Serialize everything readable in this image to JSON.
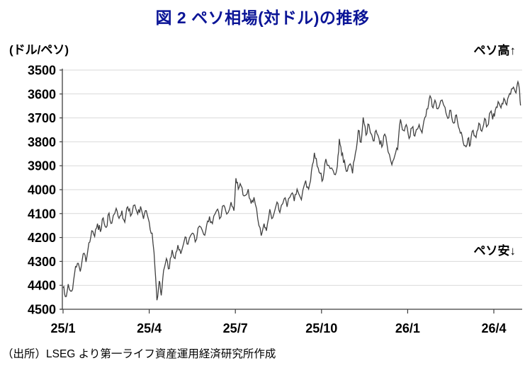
{
  "title": "図 2 ペソ相場(対ドル)の推移",
  "axis_unit": "(ドル/ペソ)",
  "annotations": {
    "high": "ペソ高↑",
    "low": "ペソ安↓"
  },
  "source": "（出所）LSEG より第一ライフ資産運用経済研究所作成",
  "colors": {
    "title": "#0b1597",
    "series_line": "#404040",
    "gridline": "#d9d9d9",
    "axis": "#3f3f3f",
    "tick_text": "#000000"
  },
  "chart_data": {
    "type": "line",
    "title": "図 2 ペソ相場(対ドル)の推移",
    "ylabel": "(ドル/ペソ)",
    "grid": "horizontal",
    "legend": "none",
    "y_axis": {
      "min": 3500,
      "max": 4500,
      "tick_step": 100,
      "inverted_display": true,
      "ticks": [
        3500,
        3600,
        3700,
        3800,
        3900,
        4000,
        4100,
        4200,
        4300,
        4400,
        4500
      ]
    },
    "x_axis": {
      "tick_labels": [
        "25/1",
        "25/4",
        "25/7",
        "25/10",
        "26/1",
        "26/4"
      ],
      "tick_month_offsets": [
        0,
        3,
        6,
        9,
        12,
        15
      ],
      "total_months": 16,
      "meaning": "year/month (2025/1 - 2026/4)"
    },
    "series": [
      {
        "name": "ペソ相場(対ドル)",
        "color": "#404040",
        "points_unit": "[months since 2025-01, pesos per dollar]",
        "points": [
          [
            0,
            4410
          ],
          [
            0.08,
            4447
          ],
          [
            0.18,
            4395
          ],
          [
            0.3,
            4424
          ],
          [
            0.4,
            4352
          ],
          [
            0.5,
            4308
          ],
          [
            0.6,
            4342
          ],
          [
            0.7,
            4268
          ],
          [
            0.8,
            4302
          ],
          [
            0.9,
            4222
          ],
          [
            1.0,
            4172
          ],
          [
            1.1,
            4196
          ],
          [
            1.2,
            4142
          ],
          [
            1.3,
            4176
          ],
          [
            1.4,
            4118
          ],
          [
            1.5,
            4158
          ],
          [
            1.6,
            4098
          ],
          [
            1.7,
            4140
          ],
          [
            1.85,
            4078
          ],
          [
            1.95,
            4120
          ],
          [
            2.05,
            4088
          ],
          [
            2.15,
            4136
          ],
          [
            2.25,
            4072
          ],
          [
            2.35,
            4110
          ],
          [
            2.5,
            4064
          ],
          [
            2.6,
            4102
          ],
          [
            2.7,
            4070
          ],
          [
            2.8,
            4122
          ],
          [
            2.9,
            4088
          ],
          [
            3.0,
            4136
          ],
          [
            3.1,
            4182
          ],
          [
            3.2,
            4326
          ],
          [
            3.27,
            4462
          ],
          [
            3.35,
            4382
          ],
          [
            3.42,
            4442
          ],
          [
            3.5,
            4338
          ],
          [
            3.6,
            4288
          ],
          [
            3.7,
            4330
          ],
          [
            3.8,
            4252
          ],
          [
            3.9,
            4288
          ],
          [
            4.0,
            4232
          ],
          [
            4.1,
            4268
          ],
          [
            4.25,
            4198
          ],
          [
            4.35,
            4228
          ],
          [
            4.5,
            4182
          ],
          [
            4.6,
            4218
          ],
          [
            4.75,
            4152
          ],
          [
            4.9,
            4188
          ],
          [
            5.0,
            4148
          ],
          [
            5.1,
            4112
          ],
          [
            5.2,
            4142
          ],
          [
            5.35,
            4086
          ],
          [
            5.45,
            4122
          ],
          [
            5.6,
            4066
          ],
          [
            5.7,
            4102
          ],
          [
            5.85,
            4052
          ],
          [
            5.95,
            4088
          ],
          [
            6.02,
            3952
          ],
          [
            6.1,
            3998
          ],
          [
            6.2,
            3984
          ],
          [
            6.3,
            4026
          ],
          [
            6.45,
            3998
          ],
          [
            6.55,
            4058
          ],
          [
            6.65,
            4032
          ],
          [
            6.78,
            4122
          ],
          [
            6.9,
            4192
          ],
          [
            7.0,
            4142
          ],
          [
            7.08,
            4172
          ],
          [
            7.2,
            4082
          ],
          [
            7.3,
            4118
          ],
          [
            7.45,
            4052
          ],
          [
            7.55,
            4096
          ],
          [
            7.7,
            4038
          ],
          [
            7.8,
            4072
          ],
          [
            7.95,
            4018
          ],
          [
            8.05,
            4048
          ],
          [
            8.15,
            3998
          ],
          [
            8.3,
            4042
          ],
          [
            8.45,
            3962
          ],
          [
            8.55,
            3998
          ],
          [
            8.65,
            3922
          ],
          [
            8.75,
            3846
          ],
          [
            8.85,
            3902
          ],
          [
            8.95,
            3932
          ],
          [
            9.05,
            3958
          ],
          [
            9.15,
            3872
          ],
          [
            9.3,
            3912
          ],
          [
            9.45,
            3936
          ],
          [
            9.55,
            3902
          ],
          [
            9.62,
            3788
          ],
          [
            9.7,
            3856
          ],
          [
            9.8,
            3878
          ],
          [
            9.9,
            3922
          ],
          [
            10.0,
            3892
          ],
          [
            10.08,
            3932
          ],
          [
            10.18,
            3848
          ],
          [
            10.28,
            3752
          ],
          [
            10.38,
            3802
          ],
          [
            10.45,
            3698
          ],
          [
            10.55,
            3772
          ],
          [
            10.65,
            3728
          ],
          [
            10.8,
            3796
          ],
          [
            10.9,
            3752
          ],
          [
            11.0,
            3786
          ],
          [
            11.1,
            3822
          ],
          [
            11.2,
            3768
          ],
          [
            11.32,
            3842
          ],
          [
            11.45,
            3896
          ],
          [
            11.55,
            3858
          ],
          [
            11.65,
            3832
          ],
          [
            11.75,
            3706
          ],
          [
            11.85,
            3752
          ],
          [
            11.95,
            3728
          ],
          [
            12.05,
            3786
          ],
          [
            12.15,
            3742
          ],
          [
            12.25,
            3776
          ],
          [
            12.4,
            3728
          ],
          [
            12.5,
            3762
          ],
          [
            12.6,
            3698
          ],
          [
            12.7,
            3662
          ],
          [
            12.78,
            3608
          ],
          [
            12.85,
            3652
          ],
          [
            12.95,
            3626
          ],
          [
            13.05,
            3662
          ],
          [
            13.15,
            3628
          ],
          [
            13.3,
            3656
          ],
          [
            13.4,
            3702
          ],
          [
            13.5,
            3668
          ],
          [
            13.6,
            3722
          ],
          [
            13.7,
            3688
          ],
          [
            13.8,
            3748
          ],
          [
            13.9,
            3778
          ],
          [
            14.0,
            3816
          ],
          [
            14.1,
            3786
          ],
          [
            14.18,
            3812
          ],
          [
            14.28,
            3752
          ],
          [
            14.38,
            3782
          ],
          [
            14.48,
            3722
          ],
          [
            14.58,
            3756
          ],
          [
            14.68,
            3702
          ],
          [
            14.78,
            3732
          ],
          [
            14.88,
            3676
          ],
          [
            14.96,
            3706
          ],
          [
            15.05,
            3668
          ],
          [
            15.15,
            3632
          ],
          [
            15.25,
            3658
          ],
          [
            15.35,
            3618
          ],
          [
            15.45,
            3646
          ],
          [
            15.55,
            3598
          ],
          [
            15.65,
            3578
          ],
          [
            15.75,
            3592
          ],
          [
            15.82,
            3558
          ],
          [
            15.88,
            3572
          ],
          [
            15.93,
            3648
          ]
        ]
      }
    ]
  }
}
